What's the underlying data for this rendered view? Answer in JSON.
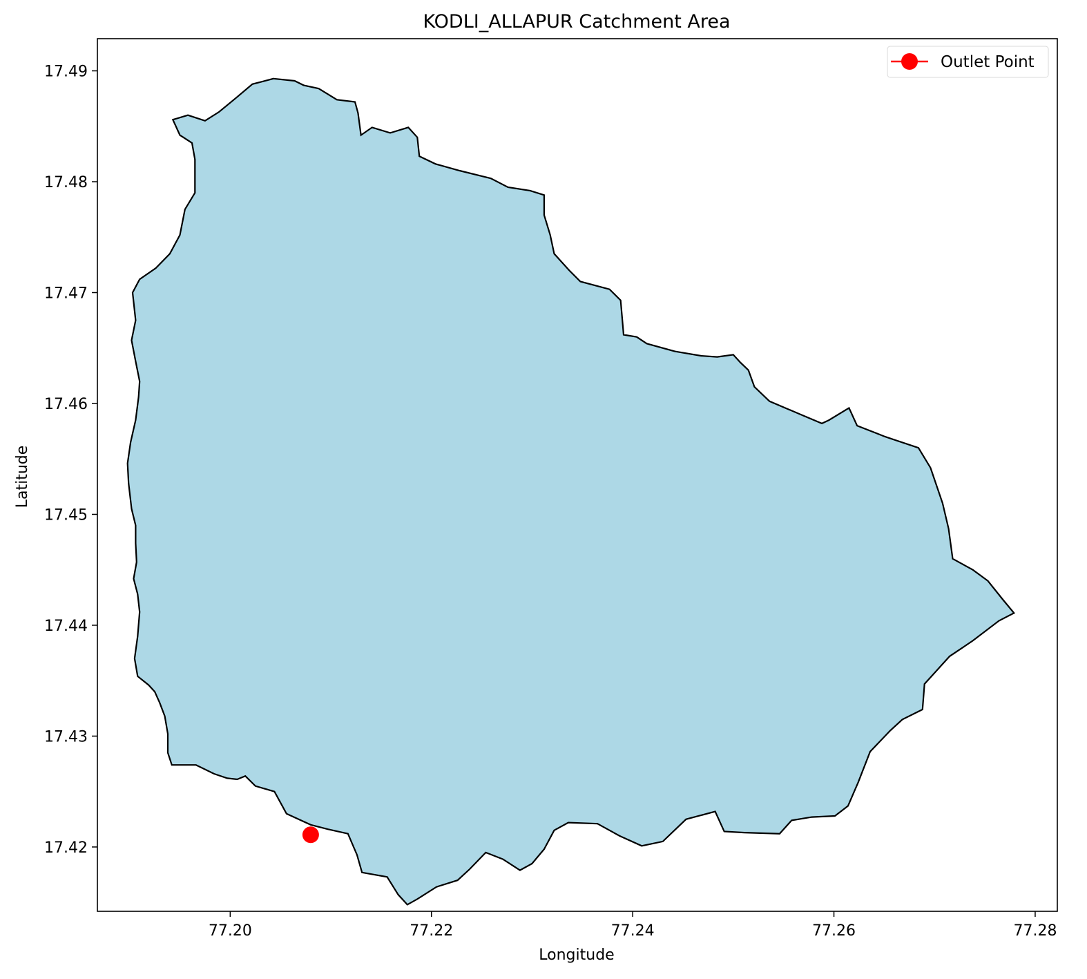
{
  "chart_data": {
    "type": "map",
    "title": "KODLI_ALLAPUR Catchment Area",
    "xlabel": "Longitude",
    "ylabel": "Latitude",
    "xlim": [
      77.1868,
      77.2822
    ],
    "ylim": [
      17.4142,
      17.4929
    ],
    "xticks": [
      77.2,
      77.22,
      77.24,
      77.26,
      77.28
    ],
    "xtick_labels": [
      "77.20",
      "77.22",
      "77.24",
      "77.26",
      "77.28"
    ],
    "yticks": [
      17.42,
      17.43,
      17.44,
      17.45,
      17.46,
      17.47,
      17.48,
      17.49
    ],
    "ytick_labels": [
      "17.42",
      "17.43",
      "17.44",
      "17.45",
      "17.46",
      "17.47",
      "17.48",
      "17.49"
    ],
    "grid": false,
    "legend": {
      "location": "top-right",
      "entries": [
        {
          "label": "Outlet Point",
          "color": "#ff0000",
          "marker": "circle"
        }
      ]
    },
    "catchment": {
      "fill": "#add8e6",
      "edge": "#000000",
      "polygon": [
        [
          77.2043,
          17.4893
        ],
        [
          77.2064,
          17.4891
        ],
        [
          77.2073,
          17.4887
        ],
        [
          77.2088,
          17.4884
        ],
        [
          77.2106,
          17.4874
        ],
        [
          77.2124,
          17.4872
        ],
        [
          77.2127,
          17.4862
        ],
        [
          77.213,
          17.4842
        ],
        [
          77.2141,
          17.4849
        ],
        [
          77.2159,
          17.4844
        ],
        [
          77.2177,
          17.4849
        ],
        [
          77.2186,
          17.484
        ],
        [
          77.2188,
          17.4823
        ],
        [
          77.2204,
          17.4816
        ],
        [
          77.2228,
          17.481
        ],
        [
          77.2259,
          17.4803
        ],
        [
          77.2276,
          17.4795
        ],
        [
          77.2298,
          17.4792
        ],
        [
          77.2312,
          17.4788
        ],
        [
          77.2312,
          17.477
        ],
        [
          77.2318,
          17.4752
        ],
        [
          77.2322,
          17.4735
        ],
        [
          77.2337,
          17.472
        ],
        [
          77.2348,
          17.471
        ],
        [
          77.2377,
          17.4703
        ],
        [
          77.2388,
          17.4693
        ],
        [
          77.2391,
          17.4662
        ],
        [
          77.2404,
          17.466
        ],
        [
          77.2414,
          17.4654
        ],
        [
          77.2442,
          17.4647
        ],
        [
          77.2468,
          17.4643
        ],
        [
          77.2484,
          17.4642
        ],
        [
          77.25,
          17.4644
        ],
        [
          77.2507,
          17.4637
        ],
        [
          77.2515,
          17.463
        ],
        [
          77.2521,
          17.4615
        ],
        [
          77.2536,
          17.4602
        ],
        [
          77.2567,
          17.459
        ],
        [
          77.2588,
          17.4582
        ],
        [
          77.2595,
          17.4585
        ],
        [
          77.2615,
          17.4596
        ],
        [
          77.2623,
          17.458
        ],
        [
          77.2651,
          17.457
        ],
        [
          77.2684,
          17.456
        ],
        [
          77.2696,
          17.4542
        ],
        [
          77.2708,
          17.451
        ],
        [
          77.2714,
          17.4487
        ],
        [
          77.2718,
          17.446
        ],
        [
          77.2738,
          17.445
        ],
        [
          77.2753,
          17.444
        ],
        [
          77.2768,
          17.4423
        ],
        [
          77.2779,
          17.4411
        ],
        [
          77.2764,
          17.4404
        ],
        [
          77.2738,
          17.4386
        ],
        [
          77.2715,
          17.4372
        ],
        [
          77.27,
          17.4357
        ],
        [
          77.269,
          17.4347
        ],
        [
          77.2688,
          17.4324
        ],
        [
          77.2668,
          17.4315
        ],
        [
          77.2656,
          17.4305
        ],
        [
          77.2636,
          17.4286
        ],
        [
          77.2624,
          17.4258
        ],
        [
          77.2614,
          17.4237
        ],
        [
          77.2601,
          17.4228
        ],
        [
          77.2578,
          17.4227
        ],
        [
          77.2558,
          17.4224
        ],
        [
          77.2546,
          17.4212
        ],
        [
          77.2511,
          17.4213
        ],
        [
          77.2491,
          17.4214
        ],
        [
          77.2482,
          17.4232
        ],
        [
          77.2453,
          17.4225
        ],
        [
          77.243,
          17.4205
        ],
        [
          77.2409,
          17.4201
        ],
        [
          77.2387,
          17.421
        ],
        [
          77.2365,
          17.4221
        ],
        [
          77.2336,
          17.4222
        ],
        [
          77.2322,
          17.4215
        ],
        [
          77.2312,
          17.4198
        ],
        [
          77.23,
          17.4185
        ],
        [
          77.2288,
          17.4179
        ],
        [
          77.2271,
          17.4189
        ],
        [
          77.2254,
          17.4195
        ],
        [
          77.2238,
          17.418
        ],
        [
          77.2226,
          17.417
        ],
        [
          77.2205,
          17.4164
        ],
        [
          77.2186,
          17.4153
        ],
        [
          77.2176,
          17.4148
        ],
        [
          77.2167,
          17.4157
        ],
        [
          77.2156,
          17.4173
        ],
        [
          77.2131,
          17.4177
        ],
        [
          77.2126,
          17.4193
        ],
        [
          77.2117,
          17.4212
        ],
        [
          77.2097,
          17.4216
        ],
        [
          77.208,
          17.422
        ],
        [
          77.2056,
          17.423
        ],
        [
          77.2044,
          17.425
        ],
        [
          77.2025,
          17.4255
        ],
        [
          77.2015,
          17.4264
        ],
        [
          77.2007,
          17.4261
        ],
        [
          77.1997,
          17.4262
        ],
        [
          77.1984,
          17.4266
        ],
        [
          77.1966,
          17.4274
        ],
        [
          77.1942,
          17.4274
        ],
        [
          77.1938,
          17.4285
        ],
        [
          77.1938,
          17.4302
        ],
        [
          77.1935,
          17.4318
        ],
        [
          77.193,
          17.433
        ],
        [
          77.1925,
          17.434
        ],
        [
          77.1919,
          17.4346
        ],
        [
          77.1908,
          17.4354
        ],
        [
          77.1905,
          17.437
        ],
        [
          77.1908,
          17.439
        ],
        [
          77.191,
          17.4412
        ],
        [
          77.1908,
          17.4428
        ],
        [
          77.1904,
          17.4442
        ],
        [
          77.1907,
          17.4457
        ],
        [
          77.1906,
          17.4474
        ],
        [
          77.1906,
          17.449
        ],
        [
          77.1902,
          17.4505
        ],
        [
          77.1899,
          17.4528
        ],
        [
          77.1898,
          17.4546
        ],
        [
          77.1901,
          17.4565
        ],
        [
          77.1906,
          17.4585
        ],
        [
          77.1909,
          17.4606
        ],
        [
          77.191,
          17.462
        ],
        [
          77.1906,
          17.4638
        ],
        [
          77.1902,
          17.4657
        ],
        [
          77.1906,
          17.4675
        ],
        [
          77.1903,
          17.47
        ],
        [
          77.191,
          17.4712
        ],
        [
          77.1926,
          17.4722
        ],
        [
          77.194,
          17.4735
        ],
        [
          77.195,
          17.4752
        ],
        [
          77.1955,
          17.4775
        ],
        [
          77.1965,
          17.479
        ],
        [
          77.1965,
          17.482
        ],
        [
          77.1962,
          17.4835
        ],
        [
          77.195,
          17.4842
        ],
        [
          77.1943,
          17.4856
        ],
        [
          77.1958,
          17.486
        ],
        [
          77.1975,
          17.4855
        ],
        [
          77.1989,
          17.4863
        ],
        [
          77.2005,
          17.4875
        ],
        [
          77.2022,
          17.4888
        ],
        [
          77.2043,
          17.4893
        ]
      ]
    },
    "outlet_point": {
      "label": "Outlet Point",
      "lon": 77.208,
      "lat": 17.4211,
      "color": "#ff0000"
    }
  }
}
